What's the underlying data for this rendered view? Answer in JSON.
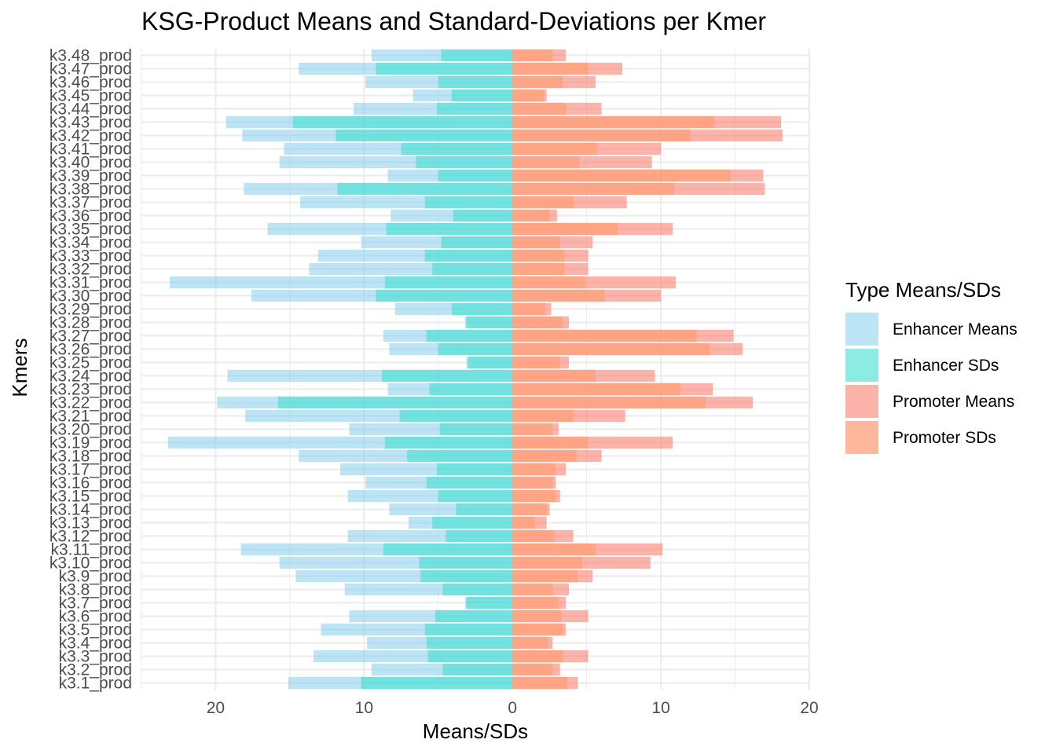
{
  "chart_data": {
    "type": "bar",
    "orientation": "horizontal-diverging",
    "title": "KSG-Product Means and Standard-Deviations per Kmer",
    "xlabel": "Means/SDs",
    "ylabel": "Kmers",
    "xlim": [
      -25,
      20
    ],
    "x_ticks": [
      -20,
      -10,
      0,
      10,
      20
    ],
    "x_tick_labels": [
      "20",
      "10",
      "0",
      "10",
      "20"
    ],
    "grid": true,
    "legend_position": "right",
    "legend": {
      "title": "Type Means/SDs",
      "entries": [
        "Enhancer Means",
        "Enhancer SDs",
        "Promoter Means",
        "Promoter SDs"
      ]
    },
    "colors": {
      "enhancer_means": "#87CEEB",
      "enhancer_sds": "#40E0D0",
      "promoter_means": "#FA8072",
      "promoter_sds": "#FFA07A",
      "grid": "#ebebeb",
      "text": "#4d4d4d"
    },
    "categories": [
      "k3.1_prod",
      "k3.2_prod",
      "k3.3_prod",
      "k3.4_prod",
      "k3.5_prod",
      "k3.6_prod",
      "k3.7_prod",
      "k3.8_prod",
      "k3.9_prod",
      "k3.10_prod",
      "k3.11_prod",
      "k3.12_prod",
      "k3.13_prod",
      "k3.14_prod",
      "k3.15_prod",
      "k3.16_prod",
      "k3.17_prod",
      "k3.18_prod",
      "k3.19_prod",
      "k3.20_prod",
      "k3.21_prod",
      "k3.22_prod",
      "k3.23_prod",
      "k3.24_prod",
      "k3.25_prod",
      "k3.26_prod",
      "k3.27_prod",
      "k3.28_prod",
      "k3.29_prod",
      "k3.30_prod",
      "k3.31_prod",
      "k3.32_prod",
      "k3.33_prod",
      "k3.34_prod",
      "k3.35_prod",
      "k3.36_prod",
      "k3.37_prod",
      "k3.38_prod",
      "k3.39_prod",
      "k3.40_prod",
      "k3.41_prod",
      "k3.42_prod",
      "k3.43_prod",
      "k3.44_prod",
      "k3.45_prod",
      "k3.46_prod",
      "k3.47_prod",
      "k3.48_prod"
    ],
    "series": [
      {
        "name": "Enhancer Means",
        "values": [
          15.1,
          9.5,
          13.4,
          9.8,
          12.9,
          11.0,
          3.2,
          11.3,
          14.6,
          15.7,
          18.3,
          11.1,
          7.0,
          8.3,
          11.1,
          9.9,
          11.6,
          14.4,
          23.2,
          11.0,
          18.0,
          19.9,
          8.4,
          19.2,
          3.1,
          8.3,
          8.7,
          3.2,
          7.9,
          17.6,
          23.1,
          13.7,
          13.1,
          10.2,
          16.5,
          8.2,
          14.3,
          18.1,
          8.4,
          15.7,
          15.4,
          18.2,
          19.3,
          10.7,
          6.7,
          9.9,
          14.4,
          9.5
        ]
      },
      {
        "name": "Enhancer SDs",
        "values": [
          10.2,
          4.7,
          5.7,
          5.8,
          5.9,
          5.2,
          3.1,
          4.7,
          6.2,
          6.3,
          8.7,
          4.5,
          5.4,
          3.8,
          5.0,
          5.8,
          5.1,
          7.1,
          8.6,
          4.9,
          7.6,
          15.8,
          5.6,
          8.8,
          3.0,
          5.0,
          5.8,
          3.1,
          4.1,
          9.2,
          8.6,
          5.4,
          5.9,
          4.8,
          8.5,
          4.0,
          5.9,
          11.8,
          5.0,
          6.5,
          7.5,
          11.9,
          14.8,
          5.1,
          4.1,
          5.0,
          9.2,
          4.8
        ]
      },
      {
        "name": "Promoter Means",
        "values": [
          4.4,
          3.2,
          5.1,
          2.7,
          3.6,
          5.1,
          3.6,
          3.8,
          5.4,
          9.3,
          10.1,
          4.1,
          2.3,
          2.5,
          3.2,
          2.9,
          3.6,
          6.0,
          10.8,
          3.1,
          7.6,
          16.2,
          13.5,
          9.6,
          3.8,
          15.5,
          14.9,
          3.8,
          2.6,
          10.0,
          11.0,
          5.1,
          5.1,
          5.4,
          10.8,
          3.0,
          7.7,
          17.0,
          16.9,
          9.4,
          10.0,
          18.2,
          18.1,
          6.0,
          2.3,
          5.6,
          7.4,
          3.6
        ]
      },
      {
        "name": "Promoter SDs",
        "values": [
          3.7,
          2.7,
          3.4,
          2.4,
          3.4,
          3.3,
          3.1,
          2.7,
          4.4,
          4.7,
          5.6,
          2.8,
          1.5,
          2.3,
          2.9,
          2.7,
          2.9,
          4.3,
          5.1,
          2.7,
          4.1,
          13.0,
          11.3,
          5.6,
          3.2,
          13.3,
          12.4,
          3.4,
          2.2,
          6.2,
          4.9,
          3.5,
          3.5,
          3.2,
          7.1,
          2.5,
          4.1,
          10.9,
          14.7,
          4.5,
          5.7,
          12.0,
          13.6,
          3.6,
          2.1,
          3.4,
          5.1,
          2.7
        ]
      }
    ]
  }
}
